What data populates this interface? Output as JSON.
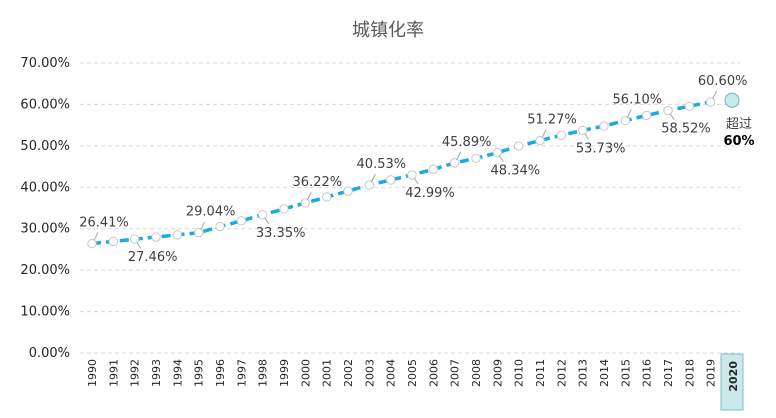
{
  "chart_data": {
    "type": "line",
    "title": "城镇化率",
    "xlabel": "",
    "ylabel": "",
    "ylim": [
      0,
      70
    ],
    "yticks": [
      "0.00%",
      "10.00%",
      "20.00%",
      "30.00%",
      "40.00%",
      "50.00%",
      "60.00%",
      "70.00%"
    ],
    "grid": true,
    "x": [
      "1990",
      "1991",
      "1992",
      "1993",
      "1994",
      "1995",
      "1996",
      "1997",
      "1998",
      "1999",
      "2000",
      "2001",
      "2002",
      "2003",
      "2004",
      "2005",
      "2006",
      "2007",
      "2008",
      "2009",
      "2010",
      "2011",
      "2012",
      "2013",
      "2014",
      "2015",
      "2016",
      "2017",
      "2018",
      "2019",
      "2020"
    ],
    "series": [
      {
        "values": [
          26.41,
          26.94,
          27.46,
          27.99,
          28.51,
          29.04,
          30.48,
          31.91,
          33.35,
          34.78,
          36.22,
          37.66,
          39.09,
          40.53,
          41.76,
          42.99,
          44.34,
          45.89,
          46.99,
          48.34,
          49.95,
          51.27,
          52.57,
          53.73,
          54.77,
          56.1,
          57.35,
          58.52,
          59.58,
          60.6,
          61.0
        ],
        "color": "#1aabdf"
      }
    ],
    "data_labels": [
      {
        "x": "1990",
        "text": "26.41%",
        "pos": "above"
      },
      {
        "x": "1992",
        "text": "27.46%",
        "pos": "below"
      },
      {
        "x": "1995",
        "text": "29.04%",
        "pos": "above"
      },
      {
        "x": "1998",
        "text": "33.35%",
        "pos": "below"
      },
      {
        "x": "2000",
        "text": "36.22%",
        "pos": "above"
      },
      {
        "x": "2003",
        "text": "40.53%",
        "pos": "above"
      },
      {
        "x": "2005",
        "text": "42.99%",
        "pos": "below"
      },
      {
        "x": "2007",
        "text": "45.89%",
        "pos": "above"
      },
      {
        "x": "2009",
        "text": "48.34%",
        "pos": "below"
      },
      {
        "x": "2011",
        "text": "51.27%",
        "pos": "above"
      },
      {
        "x": "2013",
        "text": "53.73%",
        "pos": "below"
      },
      {
        "x": "2015",
        "text": "56.10%",
        "pos": "above"
      },
      {
        "x": "2017",
        "text": "58.52%",
        "pos": "below"
      },
      {
        "x": "2019",
        "text": "60.60%",
        "pos": "above"
      }
    ],
    "annotation": {
      "line1": "超过",
      "line2": "60%"
    },
    "highlight_category": "2020",
    "colors": {
      "line": "#1aabdf",
      "highlight_fill": "#c9e9eb",
      "highlight_stroke": "#7fbfc4",
      "marker_fill": "#ffffff",
      "marker_stroke": "#c8c8c8"
    }
  }
}
